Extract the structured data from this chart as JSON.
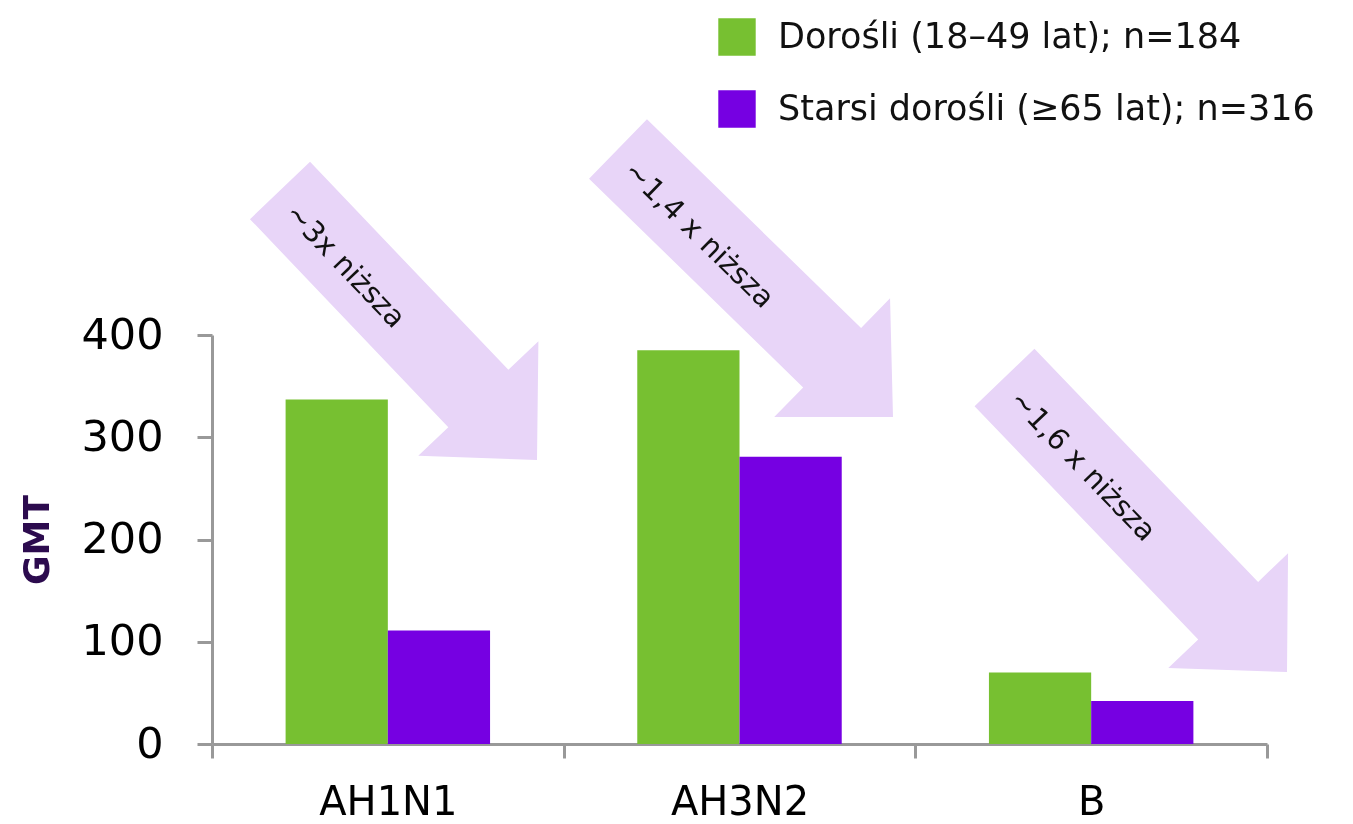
{
  "chart_data": {
    "type": "bar",
    "categories": [
      "AH1N1",
      "AH3N2",
      "B"
    ],
    "ylabel": "GMT",
    "ylim": [
      0,
      400
    ],
    "yticks": [
      0,
      100,
      200,
      300,
      400
    ],
    "grid": false,
    "legend": "top right",
    "series": [
      {
        "name": "Dorośli (18–49 lat); n=184",
        "color": "#77c031",
        "values": [
          337,
          385,
          70
        ]
      },
      {
        "name": "Starsi dorośli (≥65 lat); n=316",
        "color": "#7600e2",
        "values": [
          111,
          281,
          42
        ]
      }
    ],
    "annotations": [
      "~3x niższa",
      "~1,4 x niższa",
      "~1,6 x niższa"
    ]
  }
}
